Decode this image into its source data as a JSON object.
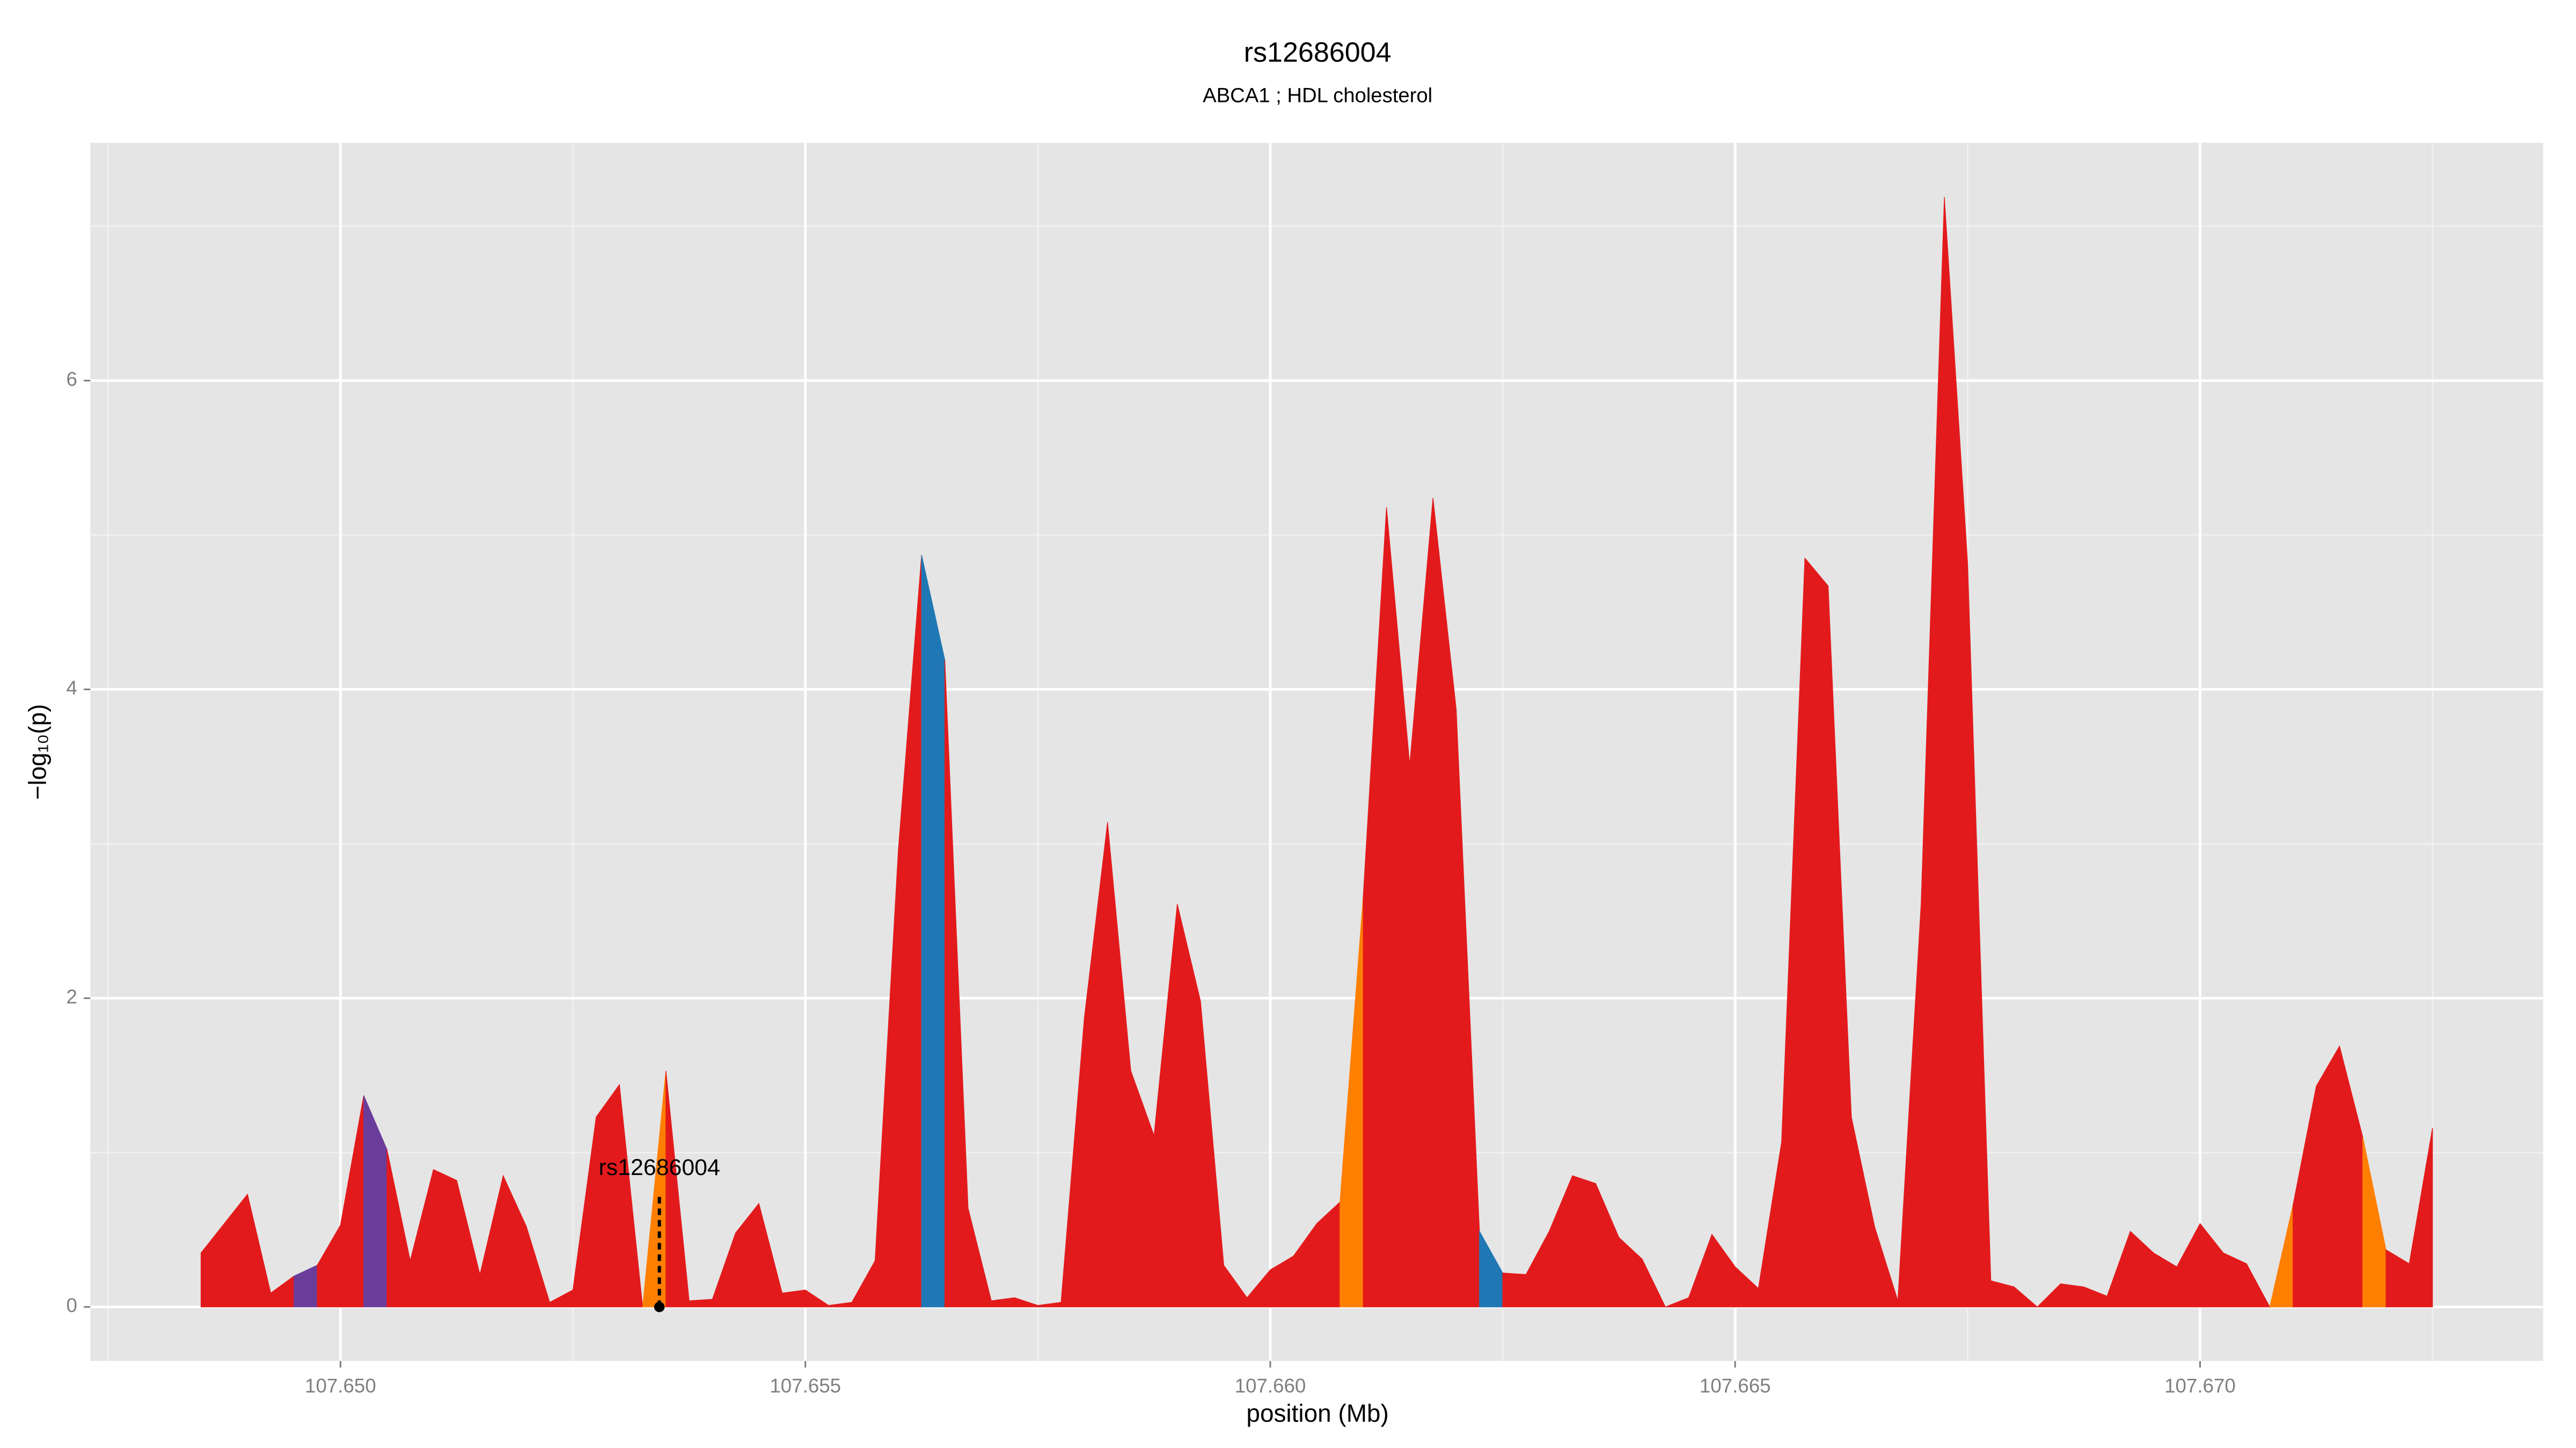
{
  "chart_data": {
    "type": "area",
    "title": "rs12686004",
    "subtitle": "ABCA1 ; HDL cholesterol",
    "x_label": "position (Mb)",
    "y_label": "−log₁₀(p)",
    "xlim": [
      107.64731,
      107.67369
    ],
    "ylim": [
      -0.35,
      7.54
    ],
    "xticks": [
      {
        "value": 107.65,
        "label": "107.650"
      },
      107.655,
      {
        "value": 107.66,
        "label": "107.660"
      },
      107.665,
      {
        "value": 107.67,
        "label": "107.670"
      }
    ],
    "yticks": [
      0,
      2,
      4,
      6
    ],
    "x_minor_grid": [
      107.6475,
      107.6525,
      107.6575,
      107.6625,
      107.6675,
      107.6725
    ],
    "y_minor_grid": [
      1,
      3,
      5,
      7
    ],
    "grid": true,
    "series": [
      {
        "color": "#e31a1c",
        "x": [
          107.6485,
          107.64875,
          107.649,
          107.64925,
          107.6495
        ],
        "values": [
          0.35,
          0.54,
          0.73,
          0.09,
          0.2
        ]
      },
      {
        "color": "#6a3d9a",
        "x": [
          107.6495,
          107.64975
        ],
        "values": [
          0.2,
          0.27
        ]
      },
      {
        "color": "#e31a1c",
        "x": [
          107.64975,
          107.65,
          107.65025
        ],
        "values": [
          0.27,
          0.53,
          1.37
        ]
      },
      {
        "color": "#6a3d9a",
        "x": [
          107.65025,
          107.6505
        ],
        "values": [
          1.37,
          1.02
        ]
      },
      {
        "color": "#e31a1c",
        "x": [
          107.6505,
          107.65075,
          107.651,
          107.65125,
          107.6515,
          107.65175,
          107.652,
          107.65225,
          107.6525,
          107.65275,
          107.653,
          107.65325
        ],
        "values": [
          1.02,
          0.3,
          0.89,
          0.82,
          0.21,
          0.85,
          0.52,
          0.03,
          0.11,
          1.23,
          1.44,
          0
        ]
      },
      {
        "color": "#ff7f00",
        "x": [
          107.65325,
          107.6535
        ],
        "values": [
          0,
          1.53
        ]
      },
      {
        "color": "#e31a1c",
        "x": [
          107.6535,
          107.65375,
          107.654,
          107.65425,
          107.6545,
          107.65475,
          107.655,
          107.65525,
          107.6555,
          107.65575,
          107.656,
          107.65625
        ],
        "values": [
          1.53,
          0.04,
          0.05,
          0.48,
          0.67,
          0.09,
          0.11,
          0.01,
          0.03,
          0.3,
          2.96,
          4.87
        ]
      },
      {
        "color": "#1f78b4",
        "x": [
          107.65625,
          107.6565
        ],
        "values": [
          4.87,
          4.19
        ]
      },
      {
        "color": "#e31a1c",
        "x": [
          107.6565,
          107.65675,
          107.657,
          107.65725,
          107.6575,
          107.65775,
          107.658,
          107.65825,
          107.6585,
          107.65875,
          107.659,
          107.65925,
          107.6595,
          107.65975,
          107.66,
          107.66025,
          107.6605,
          107.66075
        ],
        "values": [
          4.19,
          0.64,
          0.04,
          0.06,
          0.01,
          0.03,
          1.87,
          3.14,
          1.53,
          1.11,
          2.61,
          1.98,
          0.27,
          0.06,
          0.24,
          0.33,
          0.54,
          0.68
        ]
      },
      {
        "color": "#ff7f00",
        "x": [
          107.66075,
          107.661
        ],
        "values": [
          0.68,
          2.66
        ]
      },
      {
        "color": "#e31a1c",
        "x": [
          107.661,
          107.66125,
          107.6615,
          107.66175,
          107.662,
          107.66225
        ],
        "values": [
          2.66,
          5.18,
          3.51,
          5.24,
          3.87,
          0.49
        ]
      },
      {
        "color": "#1f78b4",
        "x": [
          107.66225,
          107.6625
        ],
        "values": [
          0.49,
          0.22
        ]
      },
      {
        "color": "#e31a1c",
        "x": [
          107.6625,
          107.66275,
          107.663,
          107.66325,
          107.6635,
          107.66375,
          107.664,
          107.66425,
          107.6645,
          107.66475,
          107.665,
          107.66525,
          107.6655,
          107.66575,
          107.666,
          107.66625,
          107.6665,
          107.66675,
          107.667,
          107.66725,
          107.6675,
          107.66775,
          107.668,
          107.66825,
          107.6685,
          107.66875,
          107.669,
          107.66925,
          107.6695,
          107.66975,
          107.67,
          107.67025,
          107.6705,
          107.67075
        ],
        "values": [
          0.22,
          0.21,
          0.49,
          0.85,
          0.8,
          0.45,
          0.31,
          0,
          0.06,
          0.47,
          0.26,
          0.12,
          1.07,
          4.85,
          4.67,
          1.23,
          0.52,
          0.04,
          2.61,
          7.19,
          4.82,
          0.17,
          0.13,
          0,
          0.15,
          0.13,
          0.07,
          0.49,
          0.35,
          0.26,
          0.54,
          0.35,
          0.28,
          0
        ]
      },
      {
        "color": "#ff7f00",
        "x": [
          107.67075,
          107.671
        ],
        "values": [
          0,
          0.66
        ]
      },
      {
        "color": "#e31a1c",
        "x": [
          107.671,
          107.67125,
          107.6715,
          107.67175
        ],
        "values": [
          0.66,
          1.43,
          1.69,
          1.1
        ]
      },
      {
        "color": "#ff7f00",
        "x": [
          107.67175,
          107.672
        ],
        "values": [
          1.1,
          0.37
        ]
      },
      {
        "color": "#e31a1c",
        "x": [
          107.672,
          107.67225,
          107.6725
        ],
        "values": [
          0.37,
          0.28,
          1.16
        ]
      }
    ],
    "annotation": {
      "label": "rs12686004",
      "x": 107.65343,
      "y": 0
    }
  }
}
